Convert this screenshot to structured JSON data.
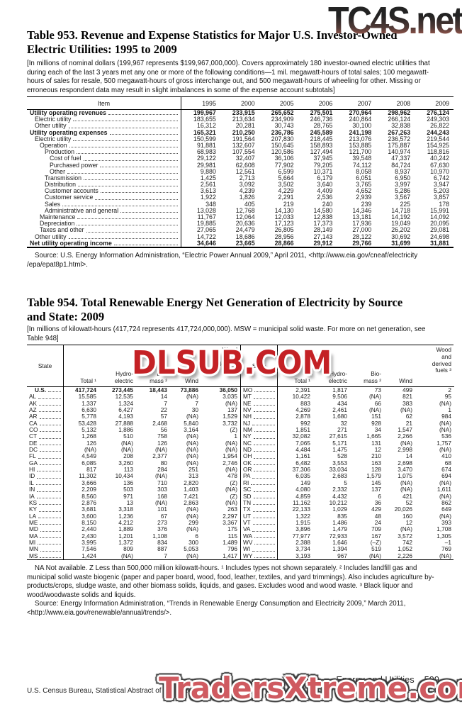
{
  "watermarks": {
    "top": "TC4S.net",
    "middle": "DLSUB.COM",
    "bottom": "TradersXtreme.com"
  },
  "colors": {
    "top_watermark_gradient_start": "#232323",
    "top_watermark_gradient_end": "#96564c",
    "middle_watermark_red": "#c42125",
    "bottom_watermark_red": "#cf5a60"
  },
  "table953": {
    "title": "Table 953. Revenue and Expense Statistics for Major U.S. Investor-Owned\nElectric Utilities: 1995 to 2009",
    "note": "[In millions of nominal dollars (199,967 represents $199,967,000,000). Covers approximately 180 investor-owned electric utilities that during each of the last 3 years met any one or more of the following conditions—1 mil. megawatt-hours of total sales; 100 megawatt-hours of sales for resale, 500 megawatt-hours of gross interchange out, and 500 megawatt-hours of wheeling for other. Missing or erroneous respondent data may result in slight imbalances in some of the expense account subtotals]",
    "columns": [
      "Item",
      "1995",
      "2000",
      "2005",
      "2006",
      "2007",
      "2008",
      "2009"
    ],
    "rows": [
      {
        "label": "Utility operating revenues",
        "bold": true,
        "indent": 0,
        "values": [
          "199,967",
          "233,915",
          "265,652",
          "275,501",
          "270,964",
          "298,962",
          "276,124"
        ]
      },
      {
        "label": "Electric utility",
        "indent": 1,
        "values": [
          "183,655",
          "213,634",
          "234,909",
          "246,736",
          "240,864",
          "266,124",
          "249,303"
        ]
      },
      {
        "label": "Other utility",
        "indent": 1,
        "values": [
          "16,312",
          "20,281",
          "30,743",
          "28,765",
          "30,100",
          "32,838",
          "26,822"
        ]
      },
      {
        "label": "Utility operating expenses",
        "bold": true,
        "indent": 0,
        "values": [
          "165,321",
          "210,250",
          "236,786",
          "245,589",
          "241,198",
          "267,263",
          "244,243"
        ]
      },
      {
        "label": "Electric utility",
        "indent": 1,
        "values": [
          "150,599",
          "191,564",
          "207,830",
          "218,445",
          "213,076",
          "236,572",
          "219,544"
        ]
      },
      {
        "label": "Operation",
        "indent": 2,
        "values": [
          "91,881",
          "132,607",
          "150,645",
          "158,893",
          "153,885",
          "175,887",
          "154,925"
        ]
      },
      {
        "label": "Production",
        "indent": 3,
        "values": [
          "68,983",
          "107,554",
          "120,586",
          "127,494",
          "121,700",
          "140,974",
          "118,816"
        ]
      },
      {
        "label": "Cost of fuel",
        "indent": 4,
        "values": [
          "29,122",
          "32,407",
          "36,106",
          "37,945",
          "39,548",
          "47,337",
          "40,242"
        ]
      },
      {
        "label": "Purchased power",
        "indent": 4,
        "values": [
          "29,981",
          "62,608",
          "77,902",
          "79,205",
          "74,112",
          "84,724",
          "67,630"
        ]
      },
      {
        "label": "Other",
        "indent": 4,
        "values": [
          "9,880",
          "12,561",
          "6,599",
          "10,371",
          "8,058",
          "8,937",
          "10,970"
        ]
      },
      {
        "label": "Transmission",
        "indent": 3,
        "values": [
          "1,425",
          "2,713",
          "5,664",
          "6,179",
          "6,051",
          "6,950",
          "6,742"
        ]
      },
      {
        "label": "Distribution",
        "indent": 3,
        "values": [
          "2,561",
          "3,092",
          "3,502",
          "3,640",
          "3,765",
          "3,997",
          "3,947"
        ]
      },
      {
        "label": "Customer accounts",
        "indent": 3,
        "values": [
          "3,613",
          "4,239",
          "4,229",
          "4,409",
          "4,652",
          "5,286",
          "5,203"
        ]
      },
      {
        "label": "Customer service",
        "indent": 3,
        "values": [
          "1,922",
          "1,826",
          "2,291",
          "2,536",
          "2,939",
          "3,567",
          "3,857"
        ]
      },
      {
        "label": "Sales",
        "indent": 3,
        "values": [
          "348",
          "405",
          "219",
          "240",
          "239",
          "225",
          "178"
        ]
      },
      {
        "label": "Administrative and general",
        "indent": 3,
        "values": [
          "13,028",
          "12,768",
          "14,130",
          "14,580",
          "14,346",
          "14,718",
          "15,991"
        ]
      },
      {
        "label": "Maintenance",
        "indent": 2,
        "values": [
          "11,767",
          "12,064",
          "12,033",
          "12,838",
          "13,181",
          "14,192",
          "14,092"
        ]
      },
      {
        "label": "Depreciation",
        "indent": 2,
        "values": [
          "19,885",
          "20,636",
          "17,123",
          "17,373",
          "17,936",
          "19,049",
          "20,095"
        ]
      },
      {
        "label": "Taxes and other",
        "indent": 2,
        "values": [
          "27,065",
          "24,479",
          "26,805",
          "28,149",
          "27,000",
          "26,202",
          "29,081"
        ]
      },
      {
        "label": "Other utility",
        "indent": 1,
        "values": [
          "14,722",
          "18,686",
          "28,956",
          "27,143",
          "28,122",
          "30,692",
          "24,698"
        ]
      },
      {
        "label": "Net utility operating income",
        "bold": true,
        "indent": 0,
        "values": [
          "34,646",
          "23,665",
          "28,866",
          "29,912",
          "29,766",
          "31,699",
          "31,881"
        ]
      }
    ],
    "source": "Source: U.S. Energy Information Administration, “Electric Power Annual 2009,” April 2011, <http://www.eia.gov/cneaf/electricity /epa/epat8p1.html>."
  },
  "table954": {
    "title": "Table 954. Total Renewable Energy Net Generation of Electricity by Source\nand State: 2009",
    "note": "[In millions of kilowatt-hours (417,724 represents 417,724,000,000). MSW = municipal solid waste. For more on net generation, see Table 948]",
    "header": {
      "state": "State",
      "total": "Total ¹",
      "hydro": "Hydro-\nelectric",
      "biomass": "Bio-\nmass ²",
      "wind": "Wind",
      "wood": "Wood\nand\nderived\nfuels ³"
    },
    "left_rows": [
      {
        "state": "U.S.",
        "bold": true,
        "indent": 1,
        "values": [
          "417,724",
          "273,445",
          "18,443",
          "73,886",
          "36,050"
        ]
      },
      {
        "state": "AL",
        "values": [
          "15,585",
          "12,535",
          "14",
          "(NA)",
          "3,035"
        ]
      },
      {
        "state": "AK",
        "values": [
          "1,337",
          "1,324",
          "7",
          "7",
          "(NA)"
        ]
      },
      {
        "state": "AZ",
        "values": [
          "6,630",
          "6,427",
          "22",
          "30",
          "137"
        ]
      },
      {
        "state": "AR",
        "values": [
          "5,778",
          "4,193",
          "57",
          "(NA)",
          "1,529"
        ]
      },
      {
        "state": "CA",
        "values": [
          "53,428",
          "27,888",
          "2,468",
          "5,840",
          "3,732"
        ]
      },
      {
        "state": "CO",
        "values": [
          "5,132",
          "1,886",
          "56",
          "3,164",
          "(Z)"
        ]
      },
      {
        "state": "CT",
        "values": [
          "1,268",
          "510",
          "758",
          "(NA)",
          "1"
        ]
      },
      {
        "state": "DE",
        "values": [
          "126",
          "(NA)",
          "126",
          "(NA)",
          "(NA)"
        ]
      },
      {
        "state": "DC",
        "values": [
          "(NA)",
          "(NA)",
          "(NA)",
          "(NA)",
          "(NA)"
        ]
      },
      {
        "state": "FL",
        "values": [
          "4,549",
          "208",
          "2,377",
          "(NA)",
          "1,954"
        ]
      },
      {
        "state": "GA",
        "values": [
          "6,085",
          "3,260",
          "80",
          "(NA)",
          "2,746"
        ]
      },
      {
        "state": "HI",
        "values": [
          "817",
          "113",
          "284",
          "251",
          "(NA)"
        ]
      },
      {
        "state": "ID",
        "values": [
          "11,302",
          "10,434",
          "(NA)",
          "313",
          "478"
        ]
      },
      {
        "state": "IL",
        "values": [
          "3,666",
          "136",
          "710",
          "2,820",
          "(Z)"
        ]
      },
      {
        "state": "IN",
        "values": [
          "2,209",
          "503",
          "303",
          "1,403",
          "(NA)"
        ]
      },
      {
        "state": "IA",
        "values": [
          "8,560",
          "971",
          "168",
          "7,421",
          "(Z)"
        ]
      },
      {
        "state": "KS",
        "values": [
          "2,876",
          "13",
          "(NA)",
          "2,863",
          "(NA)"
        ]
      },
      {
        "state": "KY",
        "values": [
          "3,681",
          "3,318",
          "101",
          "(NA)",
          "263"
        ]
      },
      {
        "state": "LA",
        "values": [
          "3,600",
          "1,236",
          "67",
          "(NA)",
          "2,297"
        ]
      },
      {
        "state": "ME",
        "values": [
          "8,150",
          "4,212",
          "273",
          "299",
          "3,367"
        ]
      },
      {
        "state": "MD",
        "values": [
          "2,440",
          "1,889",
          "376",
          "(NA)",
          "175"
        ]
      },
      {
        "state": "MA",
        "values": [
          "2,430",
          "1,201",
          "1,108",
          "6",
          "115"
        ]
      },
      {
        "state": "MI",
        "values": [
          "3,995",
          "1,372",
          "834",
          "300",
          "1,489"
        ]
      },
      {
        "state": "MN",
        "values": [
          "7,546",
          "809",
          "887",
          "5,053",
          "796"
        ]
      },
      {
        "state": "MS",
        "values": [
          "1,424",
          "(NA)",
          "7",
          "(NA)",
          "1,417"
        ]
      }
    ],
    "right_rows": [
      {
        "state": "MO",
        "values": [
          "2,391",
          "1,817",
          "73",
          "499",
          "2"
        ]
      },
      {
        "state": "MT",
        "values": [
          "10,422",
          "9,506",
          "(NA)",
          "821",
          "95"
        ]
      },
      {
        "state": "NE",
        "values": [
          "883",
          "434",
          "66",
          "383",
          "(NA)"
        ]
      },
      {
        "state": "NV",
        "values": [
          "4,269",
          "2,461",
          "(NA)",
          "(NA)",
          "1"
        ]
      },
      {
        "state": "NH",
        "values": [
          "2,878",
          "1,680",
          "151",
          "62",
          "984"
        ]
      },
      {
        "state": "NJ",
        "values": [
          "992",
          "32",
          "928",
          "21",
          "(NA)"
        ]
      },
      {
        "state": "NM",
        "values": [
          "1,851",
          "271",
          "34",
          "1,547",
          "(NA)"
        ]
      },
      {
        "state": "NY",
        "values": [
          "32,082",
          "27,615",
          "1,665",
          "2,266",
          "536"
        ]
      },
      {
        "state": "NC",
        "values": [
          "7,065",
          "5,171",
          "131",
          "(NA)",
          "1,757"
        ]
      },
      {
        "state": "ND",
        "values": [
          "4,484",
          "1,475",
          "12",
          "2,998",
          "(NA)"
        ]
      },
      {
        "state": "OH",
        "values": [
          "1,161",
          "528",
          "210",
          "14",
          "410"
        ]
      },
      {
        "state": "OK",
        "values": [
          "6,482",
          "3,553",
          "163",
          "2,698",
          "68"
        ]
      },
      {
        "state": "OR",
        "values": [
          "37,306",
          "33,034",
          "128",
          "3,470",
          "674"
        ]
      },
      {
        "state": "PA",
        "values": [
          "6,035",
          "2,683",
          "1,579",
          "1,075",
          "694"
        ]
      },
      {
        "state": "RI",
        "values": [
          "149",
          "5",
          "145",
          "(NA)",
          "(NA)"
        ]
      },
      {
        "state": "SC",
        "values": [
          "4,080",
          "2,332",
          "137",
          "(NA)",
          "1,611"
        ]
      },
      {
        "state": "SD",
        "values": [
          "4,859",
          "4,432",
          "6",
          "421",
          "(NA)"
        ]
      },
      {
        "state": "TN",
        "values": [
          "11,162",
          "10,212",
          "36",
          "52",
          "862"
        ]
      },
      {
        "state": "TX",
        "values": [
          "22,133",
          "1,029",
          "429",
          "20,026",
          "649"
        ]
      },
      {
        "state": "UT",
        "values": [
          "1,322",
          "835",
          "48",
          "160",
          "(NA)"
        ]
      },
      {
        "state": "VT",
        "values": [
          "1,915",
          "1,486",
          "24",
          "12",
          "393"
        ]
      },
      {
        "state": "VA",
        "values": [
          "3,896",
          "1,479",
          "709",
          "(NA)",
          "1,708"
        ]
      },
      {
        "state": "WA",
        "values": [
          "77,977",
          "72,933",
          "167",
          "3,572",
          "1,305"
        ]
      },
      {
        "state": "WV",
        "values": [
          "2,388",
          "1,646",
          "(–Z)",
          "742",
          "–1"
        ]
      },
      {
        "state": "WI",
        "values": [
          "3,734",
          "1,394",
          "519",
          "1,052",
          "769"
        ]
      },
      {
        "state": "WY",
        "values": [
          "3,193",
          "967",
          "(NA)",
          "2,226",
          "(NA)"
        ]
      }
    ],
    "footnote": "NA Not available. Z Less than 500,000 million kilowatt-hours. ¹ Includes types not shown separately. ² Includes landfill gas and municipal solid waste biogenic (paper and paper board, wood, food, leather, textiles, and yard trimmings). Also includes agriculture by-products/crops, sludge waste, and other biomass solids, liquids, and gases. Excludes wood and wood waste. ³ Black liquor and wood/woodwaste solids and liquids.",
    "source": "Source: Energy Information Administration, “Trends in Renewable Energy Consumption and Electricity 2009,” March 2011, <http://www.eia.gov/renewable/annual/trends/>."
  },
  "footer": {
    "section": "Energy and Utilities",
    "page": "599",
    "bureau_line": "U.S. Census Bureau, Statistical Abstract of the United States: 2012"
  }
}
